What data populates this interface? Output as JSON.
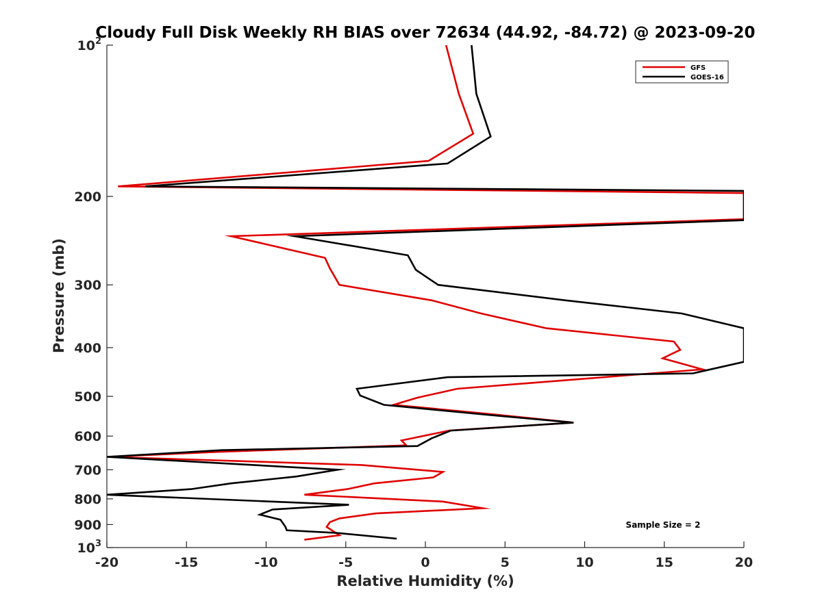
{
  "chart_data": {
    "type": "line",
    "title": "Cloudy Full Disk Weekly RH BIAS over 72634 (44.92, -84.72) @ 2023-09-20",
    "xlabel": "Relative Humidity (%)",
    "ylabel": "Pressure (mb)",
    "xlim": [
      -20,
      20
    ],
    "ylim": [
      100,
      1000
    ],
    "yscale": "log",
    "y_reversed": true,
    "grid": false,
    "legend_position": "top-right",
    "x_ticks": [
      -20,
      -15,
      -10,
      -5,
      0,
      5,
      10,
      15,
      20
    ],
    "x_tick_labels": [
      "-20",
      "-15",
      "-10",
      "-5",
      "0",
      "5",
      "10",
      "15",
      "20"
    ],
    "y_ticks": [
      {
        "value": 100,
        "base": "10",
        "exp": "2"
      },
      {
        "value": 200,
        "label": "200"
      },
      {
        "value": 300,
        "label": "300"
      },
      {
        "value": 400,
        "label": "400"
      },
      {
        "value": 500,
        "label": "500"
      },
      {
        "value": 600,
        "label": "600"
      },
      {
        "value": 700,
        "label": "700"
      },
      {
        "value": 800,
        "label": "800"
      },
      {
        "value": 900,
        "label": "900"
      },
      {
        "value": 1000,
        "base": "10",
        "exp": "3"
      }
    ],
    "annotation": "Sample Size = 2",
    "series": [
      {
        "name": "GFS",
        "color": "#e00000",
        "points": [
          [
            1.3,
            100
          ],
          [
            2.1,
            125
          ],
          [
            3.0,
            150
          ],
          [
            0.2,
            170
          ],
          [
            -19.3,
            191
          ],
          [
            20.0,
            197
          ],
          [
            20.0,
            222
          ],
          [
            -12.2,
            240
          ],
          [
            -6.3,
            265
          ],
          [
            -6.0,
            278
          ],
          [
            -5.4,
            300
          ],
          [
            0.4,
            322
          ],
          [
            3.5,
            342
          ],
          [
            7.6,
            366
          ],
          [
            15.6,
            389
          ],
          [
            16.0,
            404
          ],
          [
            14.9,
            420
          ],
          [
            17.4,
            442
          ],
          [
            2.0,
            483
          ],
          [
            -0.5,
            503
          ],
          [
            -2.0,
            520
          ],
          [
            4.0,
            542
          ],
          [
            9.3,
            564
          ],
          [
            1.5,
            585
          ],
          [
            -1.5,
            612
          ],
          [
            -1.2,
            626
          ],
          [
            -13.0,
            645
          ],
          [
            -20.0,
            660
          ],
          [
            -4.0,
            685
          ],
          [
            1.1,
            707
          ],
          [
            0.5,
            725
          ],
          [
            -3.2,
            745
          ],
          [
            -4.9,
            765
          ],
          [
            -7.6,
            785
          ],
          [
            1.1,
            810
          ],
          [
            3.6,
            835
          ],
          [
            -3.1,
            855
          ],
          [
            -5.4,
            875
          ],
          [
            -6.0,
            890
          ],
          [
            -6.2,
            910
          ],
          [
            -5.4,
            945
          ],
          [
            -7.6,
            965
          ]
        ]
      },
      {
        "name": "GOES-16",
        "color": "#000000",
        "points": [
          [
            2.9,
            100
          ],
          [
            3.2,
            125
          ],
          [
            4.1,
            152
          ],
          [
            1.4,
            172
          ],
          [
            -17.6,
            191
          ],
          [
            20.0,
            195
          ],
          [
            20.0,
            223
          ],
          [
            -8.2,
            240
          ],
          [
            -1.1,
            262
          ],
          [
            -0.6,
            280
          ],
          [
            0.8,
            300
          ],
          [
            8.8,
            322
          ],
          [
            16.1,
            342
          ],
          [
            20.0,
            366
          ],
          [
            20.0,
            427
          ],
          [
            16.8,
            450
          ],
          [
            1.4,
            458
          ],
          [
            -4.3,
            483
          ],
          [
            -4.1,
            498
          ],
          [
            -2.6,
            520
          ],
          [
            4.1,
            545
          ],
          [
            9.3,
            564
          ],
          [
            1.6,
            585
          ],
          [
            0.4,
            606
          ],
          [
            -0.5,
            628
          ],
          [
            -12.8,
            640
          ],
          [
            -20.0,
            660
          ],
          [
            -5.5,
            700
          ],
          [
            -8.1,
            722
          ],
          [
            -12.2,
            745
          ],
          [
            -14.7,
            765
          ],
          [
            -20.0,
            785
          ],
          [
            -10.5,
            808
          ],
          [
            -4.8,
            822
          ],
          [
            -9.6,
            840
          ],
          [
            -10.4,
            860
          ],
          [
            -9.1,
            880
          ],
          [
            -8.8,
            908
          ],
          [
            -8.7,
            924
          ],
          [
            -5.6,
            935
          ],
          [
            -1.8,
            960
          ]
        ]
      }
    ]
  }
}
